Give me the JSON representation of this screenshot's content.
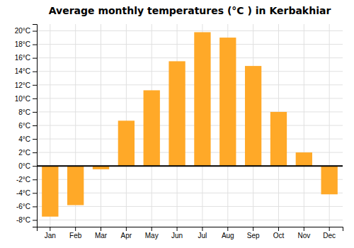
{
  "chart_data": {
    "type": "bar",
    "title": "Average monthly temperatures (°C ) in Kerbakhiar",
    "categories": [
      "Jan",
      "Feb",
      "Mar",
      "Apr",
      "May",
      "Jun",
      "Jul",
      "Aug",
      "Sep",
      "Oct",
      "Nov",
      "Dec"
    ],
    "values": [
      -7.5,
      -5.8,
      -0.5,
      6.7,
      11.2,
      15.5,
      19.8,
      19.0,
      14.8,
      8.0,
      2.0,
      -4.2
    ],
    "color": "#FFA928",
    "ylim": [
      -9,
      21
    ],
    "yticks": [
      {
        "value": -8,
        "label": "-8°C"
      },
      {
        "value": -6,
        "label": "-6°C"
      },
      {
        "value": -4,
        "label": "-4°C"
      },
      {
        "value": -2,
        "label": "-2°C"
      },
      {
        "value": 0,
        "label": "0°C"
      },
      {
        "value": 2,
        "label": "2°C"
      },
      {
        "value": 4,
        "label": "4°C"
      },
      {
        "value": 6,
        "label": "6°C"
      },
      {
        "value": 8,
        "label": "8°C"
      },
      {
        "value": 10,
        "label": "10°C"
      },
      {
        "value": 12,
        "label": "12°C"
      },
      {
        "value": 14,
        "label": "14°C"
      },
      {
        "value": 16,
        "label": "16°C"
      },
      {
        "value": 18,
        "label": "18°C"
      },
      {
        "value": 20,
        "label": "20°C"
      }
    ],
    "grid": true
  }
}
